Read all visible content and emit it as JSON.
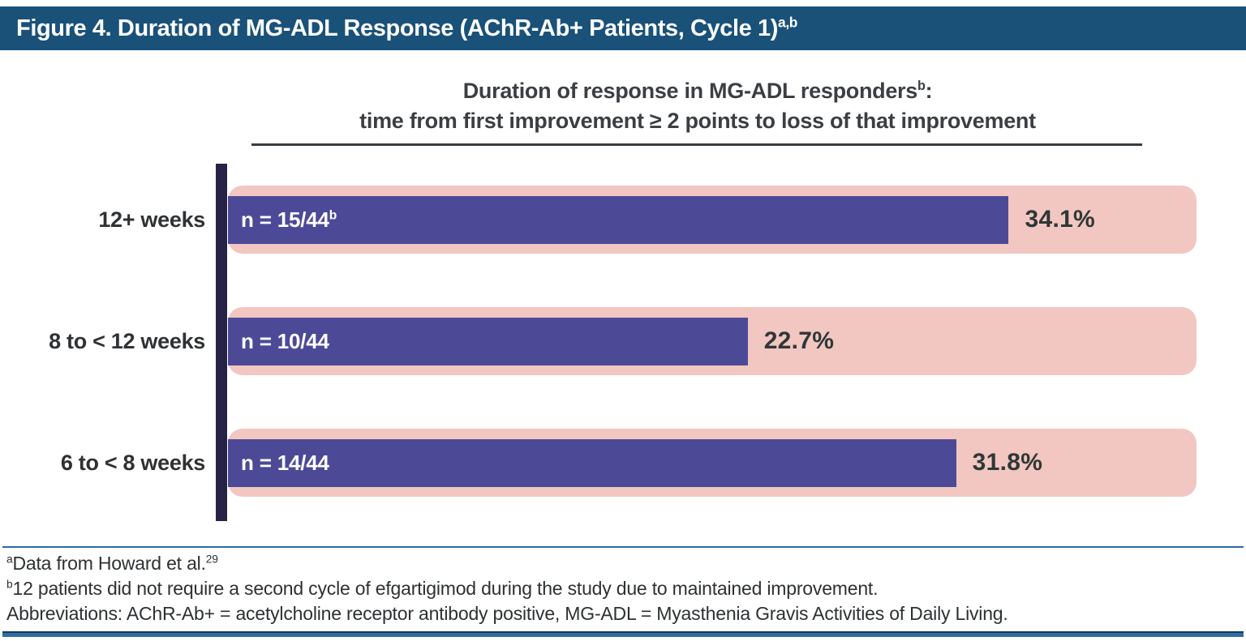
{
  "header": {
    "title": "Figure 4. Duration of MG-ADL Response (AChR-Ab+ Patients, Cycle 1)",
    "title_superscript": "a,b"
  },
  "chart": {
    "title_line1": "Duration of response in MG-ADL responders",
    "title_line1_superscript": "b",
    "title_line1_suffix": ":",
    "title_line2": "time from first improvement ≥ 2 points to loss of that improvement"
  },
  "chart_data": {
    "type": "bar",
    "orientation": "horizontal",
    "title": "Duration of response in MG-ADL responders(b): time from first improvement ≥ 2 points to loss of that improvement",
    "categories": [
      "12+ weeks",
      "8 to < 12 weeks",
      "6 to < 8 weeks"
    ],
    "values": [
      34.1,
      22.7,
      31.8
    ],
    "unit": "%",
    "value_labels": [
      "34.1%",
      "22.7%",
      "31.8%"
    ],
    "bar_annotations": [
      "n = 15/44",
      "n = 10/44",
      "n = 14/44"
    ],
    "bar_annotation_superscripts": [
      "b",
      "",
      ""
    ],
    "xlim": [
      0,
      42.3
    ],
    "grid": false,
    "legend": false,
    "bar_color": "#4c4a97",
    "track_color": "#f2c6c1"
  },
  "footnotes": {
    "a_sup": "a",
    "a_text": "Data from Howard et al.",
    "a_ref_sup": "29",
    "b_sup": "b",
    "b_text": "12 patients did not require a second cycle of efgartigimod during the study due to maintained improvement.",
    "abbreviations": "Abbreviations: AChR-Ab+ = acetylcholine receptor antibody positive, MG-ADL = Myasthenia Gravis Activities of Daily Living."
  },
  "colors": {
    "header_bg": "#195179",
    "header_text": "#ffffff",
    "bar_fill": "#4c4a97",
    "track_fill": "#f2c6c1",
    "axis_bar": "#272347",
    "title_text": "#3b3f43",
    "label_text": "#2f3234",
    "value_text": "#2f3737",
    "footnote_rule": "#2b6ba8",
    "bottom_bar": "#2e6da4"
  }
}
